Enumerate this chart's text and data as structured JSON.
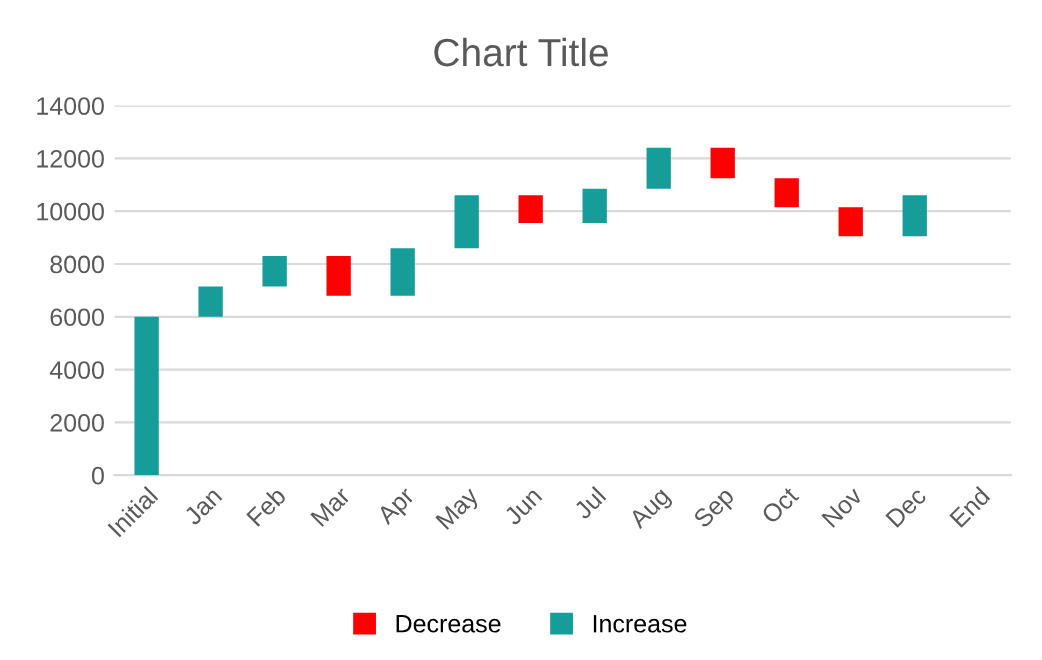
{
  "chart_data": {
    "type": "bar",
    "title": "Chart Title",
    "categories": [
      "Initial",
      "Jan",
      "Feb",
      "Mar",
      "Apr",
      "May",
      "Jun",
      "Jul",
      "Aug",
      "Sep",
      "Oct",
      "Nov",
      "Dec",
      "End"
    ],
    "series": [
      {
        "name": "Decrease",
        "color": "#ff0000",
        "base": [
          null,
          null,
          null,
          8300,
          null,
          null,
          10600,
          null,
          null,
          12400,
          11250,
          10150,
          null,
          null
        ],
        "values": [
          null,
          null,
          null,
          -1500,
          null,
          null,
          -1050,
          null,
          null,
          -1150,
          -1100,
          -1100,
          null,
          null
        ]
      },
      {
        "name": "Increase",
        "color": "#169c99",
        "base": [
          0,
          6000,
          7150,
          null,
          6800,
          8600,
          null,
          9550,
          10850,
          null,
          null,
          null,
          9050,
          null
        ],
        "values": [
          6000,
          1150,
          1150,
          null,
          1800,
          2000,
          null,
          1300,
          1550,
          null,
          null,
          null,
          1550,
          null
        ]
      }
    ],
    "ylim": [
      0,
      14000
    ],
    "yticks": [
      0,
      2000,
      4000,
      6000,
      8000,
      10000,
      12000,
      14000
    ],
    "grid": "y",
    "legend": "bottom"
  }
}
